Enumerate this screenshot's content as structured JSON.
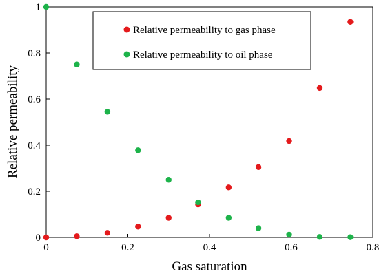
{
  "chart_data": {
    "type": "scatter",
    "xlabel": "Gas saturation",
    "ylabel": "Relative permeability",
    "xlim": [
      0,
      0.8
    ],
    "ylim": [
      0,
      1
    ],
    "xticks": [
      "0",
      "0.2",
      "0.4",
      "0.6",
      "0.8"
    ],
    "yticks": [
      "0",
      "0.2",
      "0.4",
      "0.6",
      "0.8",
      "1"
    ],
    "grid": false,
    "legend_position": "top-center",
    "series": [
      {
        "name": "Relative permeability to gas phase",
        "color": "#e41a1c",
        "points": [
          [
            0,
            0
          ],
          [
            0.075,
            0.005
          ],
          [
            0.15,
            0.02
          ],
          [
            0.225,
            0.047
          ],
          [
            0.3,
            0.085
          ],
          [
            0.372,
            0.143
          ],
          [
            0.447,
            0.217
          ],
          [
            0.52,
            0.305
          ],
          [
            0.595,
            0.418
          ],
          [
            0.67,
            0.648
          ],
          [
            0.745,
            0.935
          ]
        ]
      },
      {
        "name": "Relative permeability to oil phase",
        "color": "#1db34a",
        "points": [
          [
            0,
            1
          ],
          [
            0.075,
            0.75
          ],
          [
            0.15,
            0.545
          ],
          [
            0.225,
            0.378
          ],
          [
            0.3,
            0.25
          ],
          [
            0.372,
            0.152
          ],
          [
            0.447,
            0.085
          ],
          [
            0.52,
            0.04
          ],
          [
            0.595,
            0.012
          ],
          [
            0.67,
            0.002
          ],
          [
            0.745,
            0.001
          ]
        ]
      }
    ]
  }
}
